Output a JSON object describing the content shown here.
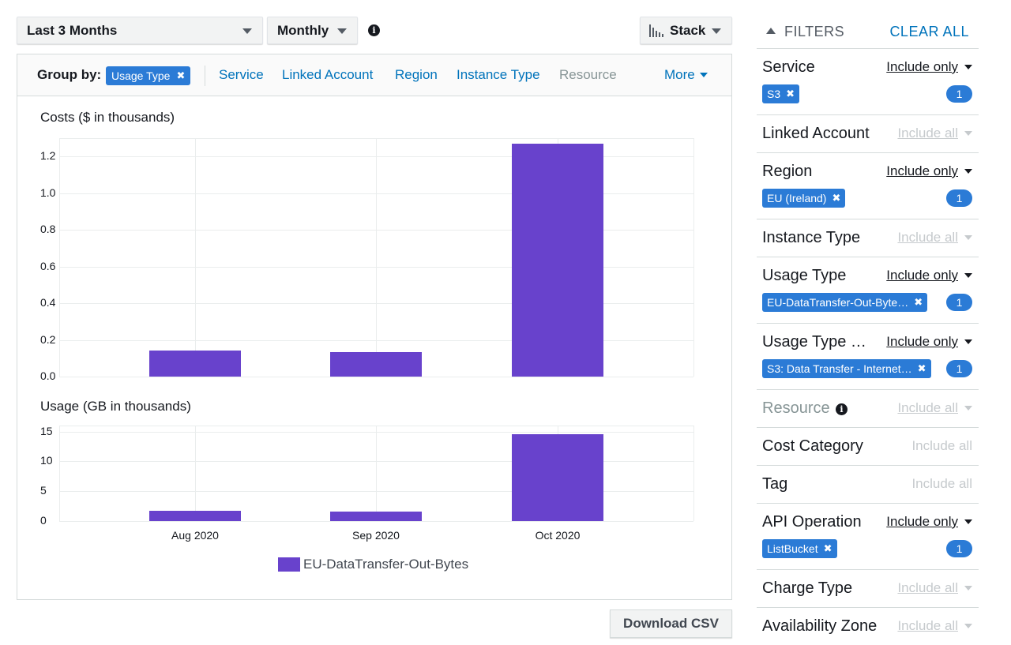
{
  "toolbar": {
    "date_range": "Last 3 Months",
    "granularity": "Monthly",
    "chart_style": "Stack"
  },
  "group_by": {
    "label": "Group by:",
    "selected": "Usage Type",
    "options": [
      "Service",
      "Linked Account",
      "Region",
      "Instance Type",
      "Resource"
    ],
    "more": "More"
  },
  "chart_data": [
    {
      "type": "bar",
      "title": "Costs ($ in thousands)",
      "categories": [
        "Aug 2020",
        "Sep 2020",
        "Oct 2020"
      ],
      "series": [
        {
          "name": "EU-DataTransfer-Out-Bytes",
          "values": [
            0.14,
            0.135,
            1.27
          ]
        }
      ],
      "yticks": [
        "0.0",
        "0.2",
        "0.4",
        "0.6",
        "0.8",
        "1.0",
        "1.2"
      ],
      "ylim": [
        0,
        1.3
      ],
      "grid": true
    },
    {
      "type": "bar",
      "title": "Usage (GB in thousands)",
      "categories": [
        "Aug 2020",
        "Sep 2020",
        "Oct 2020"
      ],
      "series": [
        {
          "name": "EU-DataTransfer-Out-Bytes",
          "values": [
            1.7,
            1.6,
            14.5
          ]
        }
      ],
      "yticks": [
        "0",
        "5",
        "10",
        "15"
      ],
      "ylim": [
        0,
        16
      ],
      "grid": true
    }
  ],
  "legend": {
    "label": "EU-DataTransfer-Out-Bytes",
    "color": "#6842cc"
  },
  "download_label": "Download CSV",
  "filters": {
    "title": "FILTERS",
    "clear_all": "CLEAR ALL",
    "items": [
      {
        "name": "Service",
        "mode": "Include only",
        "token": "S3",
        "count": "1"
      },
      {
        "name": "Linked Account",
        "mode": "Include all"
      },
      {
        "name": "Region",
        "mode": "Include only",
        "token": "EU (Ireland)",
        "count": "1"
      },
      {
        "name": "Instance Type",
        "mode": "Include all"
      },
      {
        "name": "Usage Type",
        "mode": "Include only",
        "token": "EU-DataTransfer-Out-Byte…",
        "count": "1"
      },
      {
        "name": "Usage Type …",
        "mode": "Include only",
        "token": "S3: Data Transfer - Internet…",
        "count": "1"
      },
      {
        "name": "Resource",
        "mode": "Include all"
      },
      {
        "name": "Cost Category",
        "mode": "Include all"
      },
      {
        "name": "Tag",
        "mode": "Include all"
      },
      {
        "name": "API Operation",
        "mode": "Include only",
        "token": "ListBucket",
        "count": "1"
      },
      {
        "name": "Charge Type",
        "mode": "Include all"
      },
      {
        "name": "Availability Zone",
        "mode": "Include all"
      }
    ]
  }
}
